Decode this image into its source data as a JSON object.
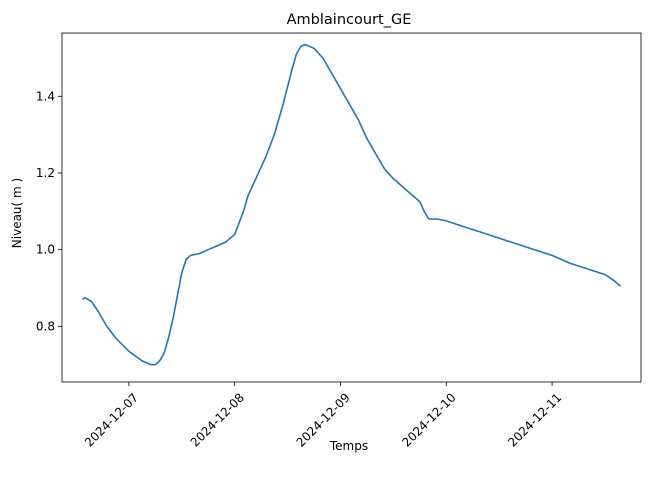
{
  "chart_data": {
    "type": "line",
    "title": "Amblaincourt_GE",
    "xlabel": "Temps",
    "ylabel": "Niveau( m )",
    "x_ticks": [
      "2024-12-07",
      "2024-12-08",
      "2024-12-09",
      "2024-12-10",
      "2024-12-11"
    ],
    "y_ticks": [
      "0.8",
      "1.0",
      "1.2",
      "1.4"
    ],
    "xlim": [
      "2024-12-06T08:50",
      "2024-12-11T20:10"
    ],
    "ylim": [
      0.655,
      1.565
    ],
    "grid": false,
    "color": "#1f77b4",
    "series": [
      {
        "x": [
          "2024-12-06T13:30",
          "2024-12-06T14:00",
          "2024-12-06T15:30",
          "2024-12-06T17:00",
          "2024-12-06T19:00",
          "2024-12-06T21:00",
          "2024-12-07T00:00",
          "2024-12-07T03:00",
          "2024-12-07T05:00",
          "2024-12-07T06:00",
          "2024-12-07T07:00",
          "2024-12-07T08:00",
          "2024-12-07T09:00",
          "2024-12-07T10:00",
          "2024-12-07T11:00",
          "2024-12-07T12:00",
          "2024-12-07T13:00",
          "2024-12-07T14:00",
          "2024-12-07T16:00",
          "2024-12-07T18:00",
          "2024-12-07T20:00",
          "2024-12-07T22:00",
          "2024-12-08T00:00",
          "2024-12-08T01:00",
          "2024-12-08T02:00",
          "2024-12-08T03:00",
          "2024-12-08T05:00",
          "2024-12-08T07:00",
          "2024-12-08T09:00",
          "2024-12-08T11:00",
          "2024-12-08T13:00",
          "2024-12-08T14:00",
          "2024-12-08T15:00",
          "2024-12-08T16:00",
          "2024-12-08T18:00",
          "2024-12-08T20:00",
          "2024-12-08T22:00",
          "2024-12-09T00:00",
          "2024-12-09T02:00",
          "2024-12-09T04:00",
          "2024-12-09T06:00",
          "2024-12-09T08:00",
          "2024-12-09T10:00",
          "2024-12-09T12:00",
          "2024-12-09T14:00",
          "2024-12-09T16:00",
          "2024-12-09T18:00",
          "2024-12-09T19:00",
          "2024-12-09T20:00",
          "2024-12-09T22:00",
          "2024-12-10T00:00",
          "2024-12-10T04:00",
          "2024-12-10T08:00",
          "2024-12-10T12:00",
          "2024-12-10T16:00",
          "2024-12-10T20:00",
          "2024-12-11T00:00",
          "2024-12-11T04:00",
          "2024-12-11T08:00",
          "2024-12-11T12:00",
          "2024-12-11T14:00",
          "2024-12-11T15:30"
        ],
        "y": [
          0.87,
          0.875,
          0.865,
          0.84,
          0.8,
          0.77,
          0.735,
          0.71,
          0.7,
          0.7,
          0.71,
          0.73,
          0.77,
          0.82,
          0.88,
          0.94,
          0.975,
          0.985,
          0.99,
          1.0,
          1.01,
          1.02,
          1.04,
          1.07,
          1.1,
          1.14,
          1.19,
          1.24,
          1.3,
          1.38,
          1.47,
          1.51,
          1.53,
          1.535,
          1.525,
          1.5,
          1.46,
          1.42,
          1.38,
          1.34,
          1.29,
          1.25,
          1.21,
          1.185,
          1.165,
          1.145,
          1.125,
          1.1,
          1.08,
          1.08,
          1.075,
          1.06,
          1.045,
          1.03,
          1.015,
          1.0,
          0.985,
          0.965,
          0.95,
          0.935,
          0.92,
          0.905
        ]
      }
    ]
  }
}
